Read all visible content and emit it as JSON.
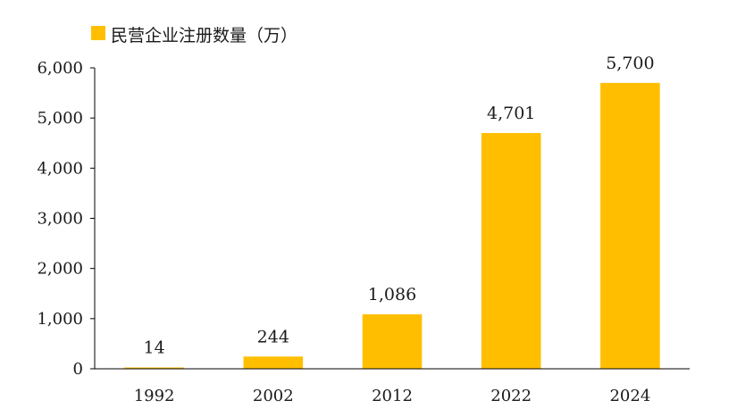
{
  "chart_data": {
    "type": "bar",
    "categories": [
      "1992",
      "2002",
      "2012",
      "2022",
      "2024"
    ],
    "series": [
      {
        "name": "民营企业注册数量（万）",
        "values": [
          14,
          244,
          1086,
          4701,
          5700
        ],
        "color": "#FFBF00"
      }
    ],
    "data_labels": [
      "14",
      "244",
      "1,086",
      "4,701",
      "5,700"
    ],
    "yticks": [
      0,
      1000,
      2000,
      3000,
      4000,
      5000,
      6000
    ],
    "ytick_labels": [
      "0",
      "1,000",
      "2,000",
      "3,000",
      "4,000",
      "5,000",
      "6,000"
    ],
    "ylim": [
      0,
      6000
    ],
    "grid": false,
    "legend_position": "top-left",
    "colors": {
      "axis": "#000000",
      "text": "#1a1a1a"
    }
  }
}
